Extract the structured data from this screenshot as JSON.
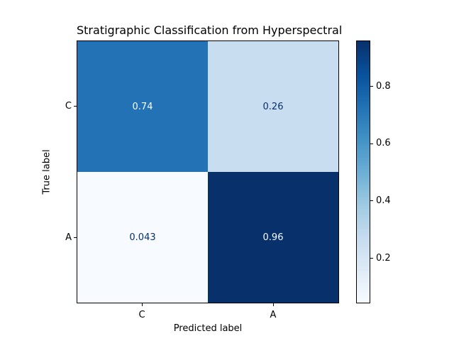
{
  "figure": {
    "title": "Stratigraphic Classification from Hyperspectral",
    "background_color": "#ffffff",
    "text_color": "#000000"
  },
  "chart_data": {
    "type": "heatmap",
    "title": "Stratigraphic Classification from Hyperspectral",
    "xlabel": "Predicted label",
    "ylabel": "True label",
    "x_tick_labels": [
      "C",
      "A"
    ],
    "y_tick_labels": [
      "C",
      "A"
    ],
    "matrix": [
      [
        0.74,
        0.26
      ],
      [
        0.043,
        0.96
      ]
    ],
    "cells": [
      {
        "true_label": "C",
        "predicted_label": "C",
        "value": "0.74",
        "bg": "#2272b5",
        "text_color": "#f7fbff"
      },
      {
        "true_label": "C",
        "predicted_label": "A",
        "value": "0.26",
        "bg": "#c8ddf0",
        "text_color": "#08306b"
      },
      {
        "true_label": "A",
        "predicted_label": "C",
        "value": "0.043",
        "bg": "#f7fbff",
        "text_color": "#08306b"
      },
      {
        "true_label": "A",
        "predicted_label": "A",
        "value": "0.96",
        "bg": "#08306b",
        "text_color": "#f7fbff"
      }
    ],
    "colorbar": {
      "colormap": "Blues",
      "vmin": 0.043,
      "vmax": 0.96,
      "ticks": [
        0.8,
        0.6,
        0.4,
        0.2
      ],
      "tick_labels": [
        "0.8",
        "0.6",
        "0.4",
        "0.2"
      ],
      "gradient_top_to_bottom": [
        "#08306b",
        "#08519c",
        "#2171b5",
        "#4292c6",
        "#6baed6",
        "#9ecae1",
        "#c6dbef",
        "#deebf7",
        "#f7fbff"
      ]
    },
    "legend": null,
    "grid": false
  }
}
